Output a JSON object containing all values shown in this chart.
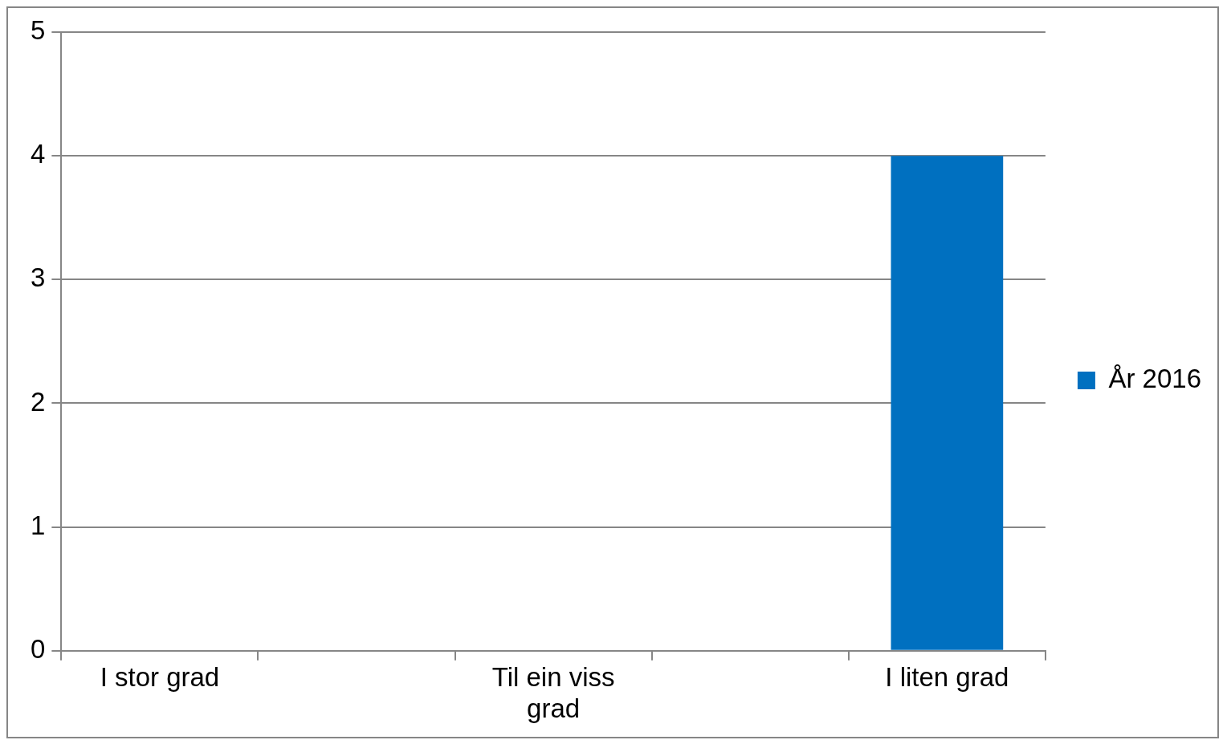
{
  "chart_data": {
    "type": "bar",
    "categories": [
      "I stor grad",
      null,
      "Til ein viss grad",
      null,
      "I liten grad"
    ],
    "series": [
      {
        "name": "År 2016",
        "color": "#0070c0",
        "values": [
          0,
          null,
          0,
          null,
          4
        ]
      }
    ],
    "ylim": [
      0,
      5
    ],
    "yticks": [
      0,
      1,
      2,
      3,
      4,
      5
    ],
    "grid": "y",
    "legend": "right"
  }
}
